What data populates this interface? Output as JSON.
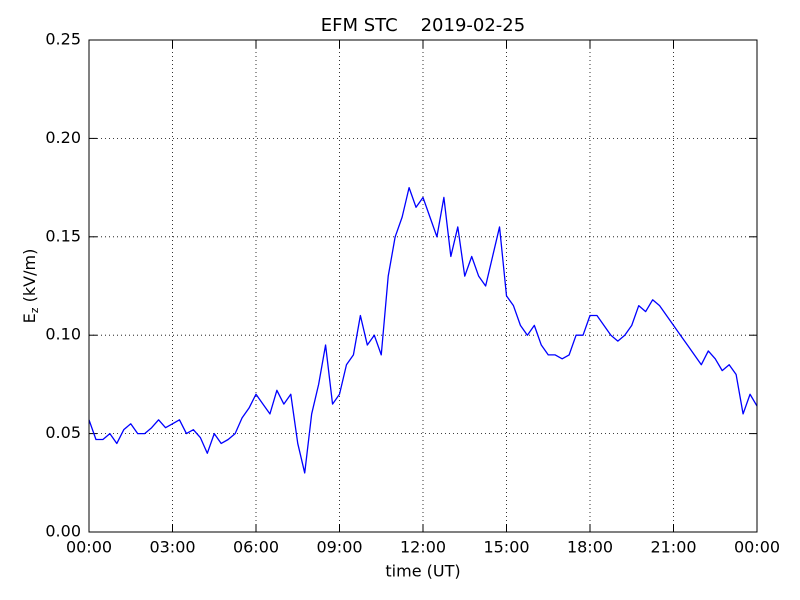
{
  "chart_data": {
    "type": "line",
    "title": "EFM STC    2019-02-25",
    "xlabel": "time (UT)",
    "ylabel": [
      "E",
      "z",
      " (kV/m)"
    ],
    "x": [
      0,
      0.25,
      0.5,
      0.75,
      1,
      1.25,
      1.5,
      1.75,
      2,
      2.25,
      2.5,
      2.75,
      3,
      3.25,
      3.5,
      3.75,
      4,
      4.25,
      4.5,
      4.75,
      5,
      5.25,
      5.5,
      5.75,
      6,
      6.25,
      6.5,
      6.75,
      7,
      7.25,
      7.5,
      7.75,
      8,
      8.25,
      8.5,
      8.75,
      9,
      9.25,
      9.5,
      9.75,
      10,
      10.25,
      10.5,
      10.75,
      11,
      11.25,
      11.5,
      11.75,
      12,
      12.25,
      12.5,
      12.75,
      13,
      13.25,
      13.5,
      13.75,
      14,
      14.25,
      14.5,
      14.75,
      15,
      15.25,
      15.5,
      15.75,
      16,
      16.25,
      16.5,
      16.75,
      17,
      17.25,
      17.5,
      17.75,
      18,
      18.25,
      18.5,
      18.75,
      19,
      19.25,
      19.5,
      19.75,
      20,
      20.25,
      20.5,
      20.75,
      21,
      21.25,
      21.5,
      21.75,
      22,
      22.25,
      22.5,
      22.75,
      23,
      23.25,
      23.5,
      23.75,
      24
    ],
    "series": [
      {
        "name": "Ez",
        "color": "#0000ff",
        "values": [
          0.057,
          0.047,
          0.047,
          0.05,
          0.045,
          0.052,
          0.055,
          0.05,
          0.05,
          0.053,
          0.057,
          0.053,
          0.055,
          0.057,
          0.05,
          0.052,
          0.048,
          0.04,
          0.05,
          0.045,
          0.047,
          0.05,
          0.058,
          0.063,
          0.07,
          0.065,
          0.06,
          0.072,
          0.065,
          0.07,
          0.045,
          0.03,
          0.06,
          0.075,
          0.095,
          0.065,
          0.07,
          0.085,
          0.09,
          0.11,
          0.095,
          0.1,
          0.09,
          0.13,
          0.15,
          0.16,
          0.175,
          0.165,
          0.17,
          0.16,
          0.15,
          0.17,
          0.14,
          0.155,
          0.13,
          0.14,
          0.13,
          0.125,
          0.14,
          0.155,
          0.12,
          0.115,
          0.105,
          0.1,
          0.105,
          0.095,
          0.09,
          0.09,
          0.088,
          0.09,
          0.1,
          0.1,
          0.11,
          0.11,
          0.105,
          0.1,
          0.097,
          0.1,
          0.105,
          0.115,
          0.112,
          0.118,
          0.115,
          0.11,
          0.105,
          0.1,
          0.095,
          0.09,
          0.085,
          0.092,
          0.088,
          0.082,
          0.085,
          0.08,
          0.06,
          0.07,
          0.064
        ]
      }
    ],
    "xlim": [
      0,
      24
    ],
    "xticks": [
      {
        "value": 0,
        "label": "00:00"
      },
      {
        "value": 3,
        "label": "03:00"
      },
      {
        "value": 6,
        "label": "06:00"
      },
      {
        "value": 9,
        "label": "09:00"
      },
      {
        "value": 12,
        "label": "12:00"
      },
      {
        "value": 15,
        "label": "15:00"
      },
      {
        "value": 18,
        "label": "18:00"
      },
      {
        "value": 21,
        "label": "21:00"
      },
      {
        "value": 24,
        "label": "00:00"
      }
    ],
    "ylim": [
      0,
      0.25
    ],
    "yticks": [
      {
        "value": 0,
        "label": "0.00"
      },
      {
        "value": 0.05,
        "label": "0.05"
      },
      {
        "value": 0.1,
        "label": "0.10"
      },
      {
        "value": 0.15,
        "label": "0.15"
      },
      {
        "value": 0.2,
        "label": "0.20"
      },
      {
        "value": 0.25,
        "label": "0.25"
      }
    ],
    "grid": true
  }
}
